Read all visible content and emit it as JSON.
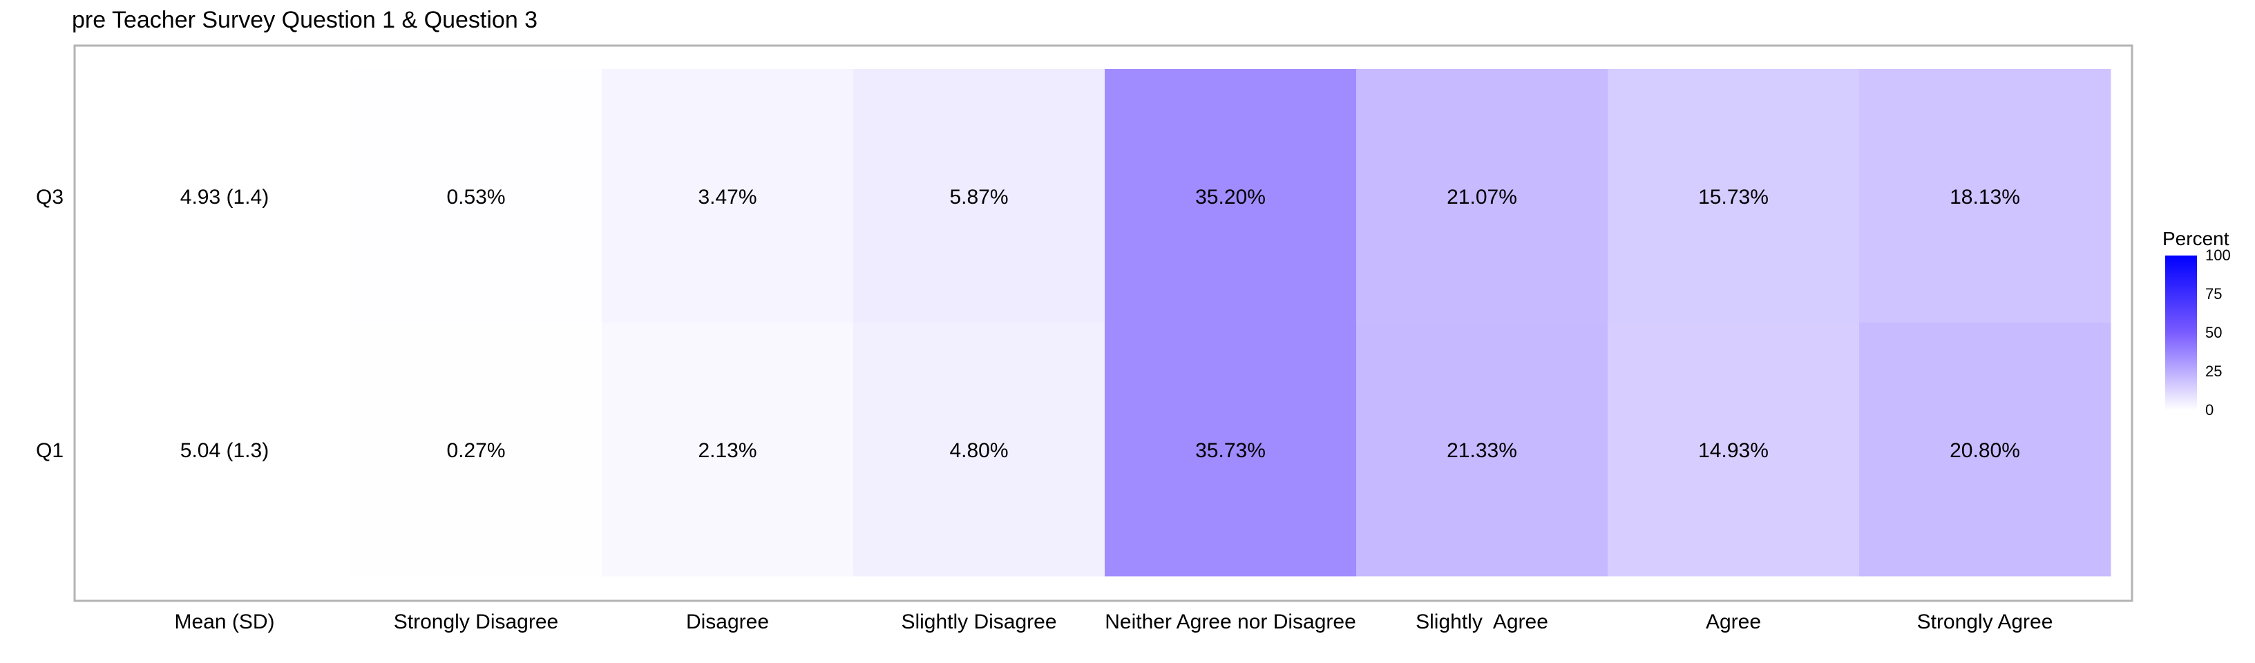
{
  "title": "pre Teacher Survey Question 1 & Question 3",
  "chart_data": {
    "type": "heatmap",
    "title": "pre Teacher Survey Question 1 & Question 3",
    "categories": [
      "Mean (SD)",
      "Strongly Disagree",
      "Disagree",
      "Slightly Disagree",
      "Neither Agree nor Disagree",
      "Slightly  Agree",
      "Agree",
      "Strongly Agree"
    ],
    "rows": [
      {
        "name": "Q3",
        "labels": [
          "4.93 (1.4)",
          "0.53%",
          "3.47%",
          "5.87%",
          "35.20%",
          "21.07%",
          "15.73%",
          "18.13%"
        ],
        "values": [
          null,
          0.53,
          3.47,
          5.87,
          35.2,
          21.07,
          15.73,
          18.13
        ]
      },
      {
        "name": "Q1",
        "labels": [
          "5.04 (1.3)",
          "0.27%",
          "2.13%",
          "4.80%",
          "35.73%",
          "21.33%",
          "14.93%",
          "20.80%"
        ],
        "values": [
          null,
          0.27,
          2.13,
          4.8,
          35.73,
          21.33,
          14.93,
          20.8
        ]
      }
    ],
    "legend": {
      "title": "Percent",
      "ticks": [
        0,
        25,
        50,
        75,
        100
      ],
      "range": [
        0,
        100
      ],
      "colors": {
        "low": "#ffffff",
        "mid": "#7a5cff",
        "high": "#0000ff"
      },
      "placement": "right"
    },
    "grid": false
  }
}
